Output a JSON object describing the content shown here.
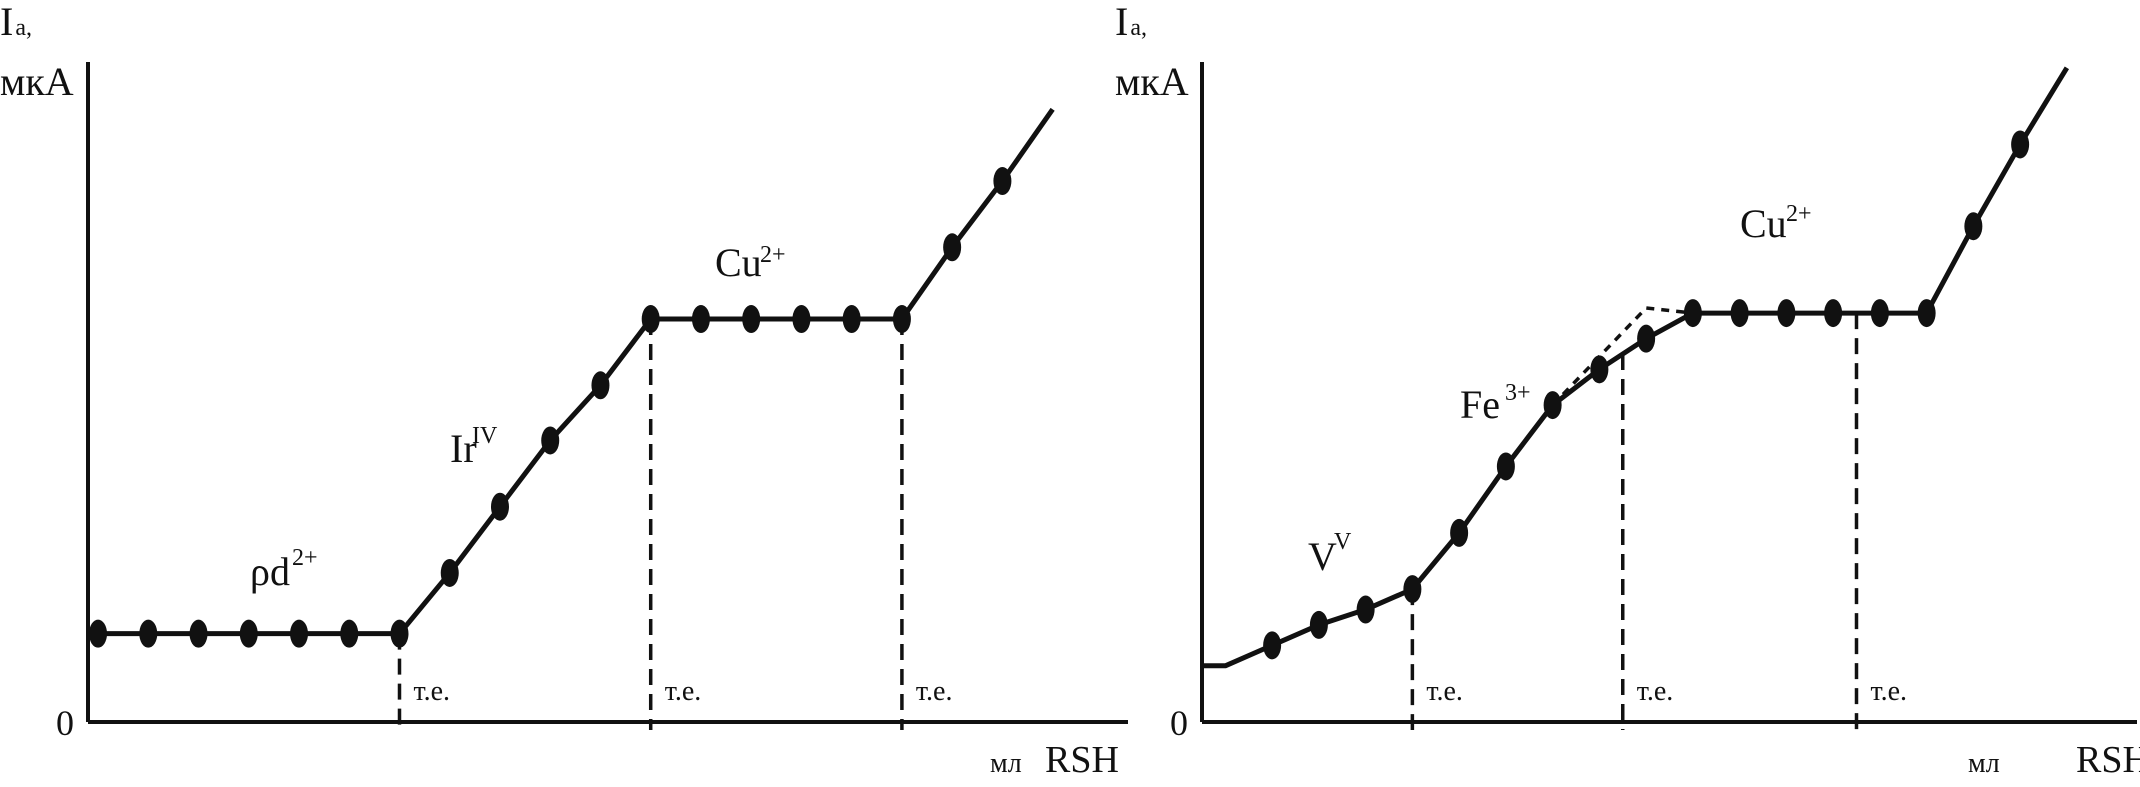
{
  "chart_data": [
    {
      "type": "line",
      "ylabel_line1": "I",
      "ylabel_sub": "a,",
      "ylabel_line2": "мкА",
      "xlabel_unit": "мл",
      "xlabel_reagent": "RSH",
      "origin_label": "0",
      "endpoint_label": "т.е.",
      "segments": [
        {
          "ion": "ρd",
          "charge": "2+",
          "points": [
            [
              0,
              1.6
            ],
            [
              1,
              1.6
            ],
            [
              2,
              1.6
            ],
            [
              3,
              1.6
            ],
            [
              4,
              1.6
            ],
            [
              5,
              1.6
            ],
            [
              6,
              1.6
            ]
          ]
        },
        {
          "ion": "Ir",
          "charge": "IV",
          "points": [
            [
              6,
              1.6
            ],
            [
              7,
              2.7
            ],
            [
              8,
              3.9
            ],
            [
              9,
              5.1
            ],
            [
              10,
              6.1
            ],
            [
              11,
              7.3
            ]
          ]
        },
        {
          "ion": "Cu",
          "charge": "2+",
          "points": [
            [
              11,
              7.3
            ],
            [
              12,
              7.3
            ],
            [
              13,
              7.3
            ],
            [
              14,
              7.3
            ],
            [
              15,
              7.3
            ],
            [
              16,
              7.3
            ]
          ]
        },
        {
          "ion": "",
          "charge": "",
          "points": [
            [
              16,
              7.3
            ],
            [
              17,
              8.6
            ],
            [
              18,
              9.8
            ],
            [
              19,
              11.1
            ]
          ]
        }
      ],
      "markers": [
        [
          0,
          1.6
        ],
        [
          1,
          1.6
        ],
        [
          2,
          1.6
        ],
        [
          3,
          1.6
        ],
        [
          4,
          1.6
        ],
        [
          5,
          1.6
        ],
        [
          6,
          1.6
        ],
        [
          7,
          2.7
        ],
        [
          8,
          3.9
        ],
        [
          9,
          5.1
        ],
        [
          10,
          6.1
        ],
        [
          11,
          7.3
        ],
        [
          12,
          7.3
        ],
        [
          13,
          7.3
        ],
        [
          14,
          7.3
        ],
        [
          15,
          7.3
        ],
        [
          16,
          7.3
        ],
        [
          17,
          8.6
        ],
        [
          18,
          9.8
        ]
      ],
      "endpoints_x": [
        6,
        11,
        16
      ],
      "xlim": [
        -0.2,
        20.5
      ],
      "ylim": [
        0,
        12.5
      ]
    },
    {
      "type": "line",
      "ylabel_line1": "I",
      "ylabel_sub": "a,",
      "ylabel_line2": "мкА",
      "xlabel_unit": "мл",
      "xlabel_reagent": "RSH",
      "origin_label": "0",
      "endpoint_label": "т.е.",
      "segments": [
        {
          "ion": "V",
          "charge": "V",
          "points": [
            [
              0,
              1.1
            ],
            [
              1,
              1.5
            ],
            [
              2,
              1.9
            ],
            [
              3,
              2.2
            ],
            [
              4,
              2.6
            ]
          ]
        },
        {
          "ion": "Fe",
          "charge": "3+",
          "points": [
            [
              4,
              2.6
            ],
            [
              5,
              3.7
            ],
            [
              6,
              5.0
            ],
            [
              7,
              6.2
            ],
            [
              8,
              6.9
            ],
            [
              9,
              7.5
            ],
            [
              10,
              8.0
            ]
          ]
        },
        {
          "ion": "Cu",
          "charge": "2+",
          "points": [
            [
              10,
              8.0
            ],
            [
              11,
              8.0
            ],
            [
              12,
              8.0
            ],
            [
              13,
              8.0
            ],
            [
              14,
              8.0
            ],
            [
              15,
              8.0
            ]
          ]
        },
        {
          "ion": "",
          "charge": "",
          "points": [
            [
              15,
              8.0
            ],
            [
              16,
              9.7
            ],
            [
              17,
              11.3
            ],
            [
              18,
              12.8
            ]
          ]
        }
      ],
      "markers": [
        [
          1,
          1.5
        ],
        [
          2,
          1.9
        ],
        [
          3,
          2.2
        ],
        [
          4,
          2.6
        ],
        [
          5,
          3.7
        ],
        [
          6,
          5.0
        ],
        [
          7,
          6.2
        ],
        [
          8,
          6.9
        ],
        [
          9,
          7.5
        ],
        [
          10,
          8.0
        ],
        [
          11,
          8.0
        ],
        [
          12,
          8.0
        ],
        [
          13,
          8.0
        ],
        [
          14,
          8.0
        ],
        [
          15,
          8.0
        ],
        [
          16,
          9.7
        ],
        [
          17,
          11.3
        ]
      ],
      "dashed_extrapolation": [
        [
          7,
          6.2
        ],
        [
          9,
          8.1
        ],
        [
          10,
          8.0
        ]
      ],
      "endpoints_x": [
        4,
        8.5,
        13.5
      ],
      "xlim": [
        -0.5,
        19.5
      ],
      "ylim": [
        0,
        13.5
      ]
    }
  ]
}
